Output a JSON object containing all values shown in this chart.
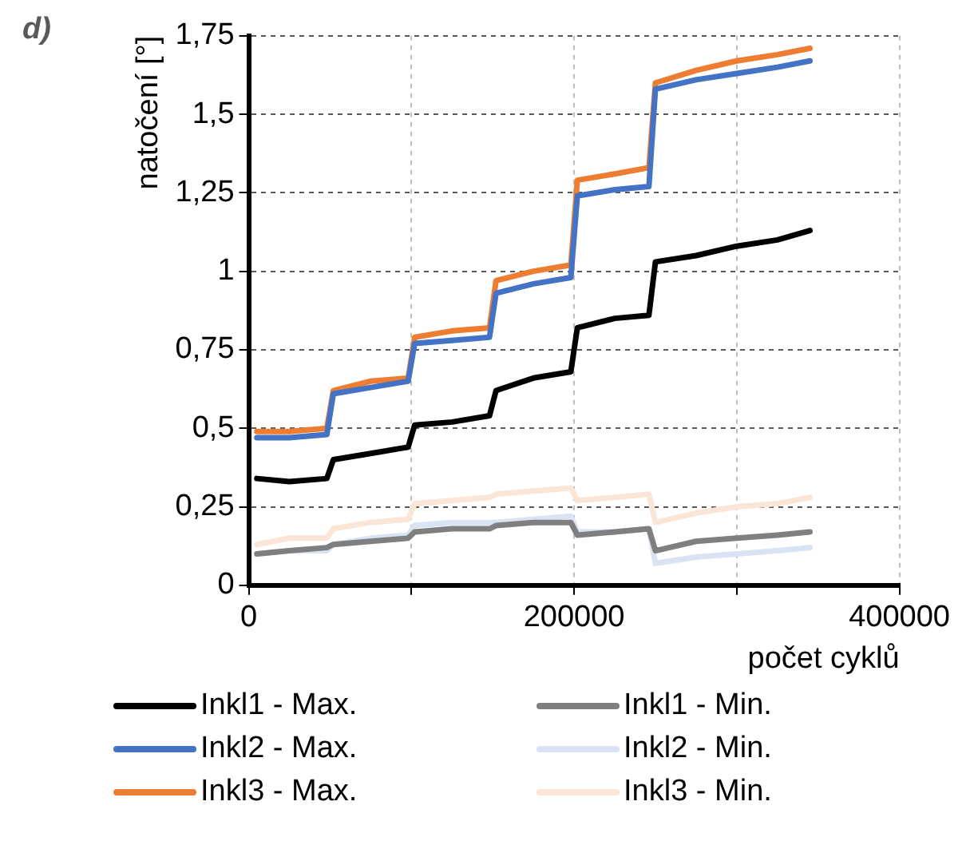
{
  "chart_data": {
    "type": "line",
    "title": "d)",
    "xlabel": "počet cyklů",
    "ylabel": "natočení [°]",
    "x": [
      5000,
      25000,
      48000,
      52000,
      75000,
      98000,
      102000,
      125000,
      148000,
      152000,
      175000,
      198000,
      202000,
      225000,
      246000,
      250000,
      275000,
      300000,
      325000,
      345000
    ],
    "series": [
      {
        "name": "Inkl1 - Max.",
        "color": "#000000",
        "values": [
          0.34,
          0.33,
          0.34,
          0.4,
          0.42,
          0.44,
          0.51,
          0.52,
          0.54,
          0.62,
          0.66,
          0.68,
          0.82,
          0.85,
          0.86,
          1.03,
          1.05,
          1.08,
          1.1,
          1.13
        ]
      },
      {
        "name": "Inkl1 - Min.",
        "color": "#7f7f7f",
        "values": [
          0.1,
          0.11,
          0.12,
          0.13,
          0.14,
          0.15,
          0.17,
          0.18,
          0.18,
          0.19,
          0.2,
          0.2,
          0.16,
          0.17,
          0.18,
          0.11,
          0.14,
          0.15,
          0.16,
          0.17
        ]
      },
      {
        "name": "Inkl2 - Max.",
        "color": "#4472c4",
        "values": [
          0.47,
          0.47,
          0.48,
          0.61,
          0.63,
          0.65,
          0.77,
          0.78,
          0.79,
          0.93,
          0.96,
          0.98,
          1.24,
          1.26,
          1.27,
          1.58,
          1.61,
          1.63,
          1.65,
          1.67
        ]
      },
      {
        "name": "Inkl2 - Min.",
        "color": "#dae3f3",
        "values": [
          0.1,
          0.11,
          0.11,
          0.13,
          0.15,
          0.16,
          0.19,
          0.2,
          0.2,
          0.2,
          0.21,
          0.22,
          0.17,
          0.17,
          0.18,
          0.07,
          0.09,
          0.1,
          0.11,
          0.12
        ]
      },
      {
        "name": "Inkl3 - Max.",
        "color": "#ed7d31",
        "values": [
          0.49,
          0.49,
          0.5,
          0.62,
          0.65,
          0.66,
          0.79,
          0.81,
          0.82,
          0.97,
          1.0,
          1.02,
          1.29,
          1.31,
          1.33,
          1.6,
          1.64,
          1.67,
          1.69,
          1.71
        ]
      },
      {
        "name": "Inkl3 - Min.",
        "color": "#fbe5d6",
        "values": [
          0.13,
          0.15,
          0.15,
          0.18,
          0.2,
          0.21,
          0.26,
          0.27,
          0.28,
          0.29,
          0.3,
          0.31,
          0.27,
          0.28,
          0.29,
          0.2,
          0.23,
          0.25,
          0.26,
          0.28
        ]
      }
    ],
    "xlim": [
      0,
      400000
    ],
    "xticks": [
      0,
      {
        "value": 100000,
        "label": null
      },
      200000,
      {
        "value": 300000,
        "label": null
      },
      400000
    ],
    "ylim": [
      0,
      1.75
    ],
    "yticks": [
      0,
      {
        "value": 0.25,
        "label": "0,25"
      },
      {
        "value": 0.5,
        "label": "0,5"
      },
      {
        "value": 0.75,
        "label": "0,75"
      },
      1,
      {
        "value": 1.25,
        "label": "1,25"
      },
      {
        "value": 1.5,
        "label": "1,5"
      },
      {
        "value": 1.75,
        "label": "1,75"
      }
    ],
    "grid": true,
    "legend": "bottom",
    "marker": "none",
    "line_style": "solid"
  }
}
